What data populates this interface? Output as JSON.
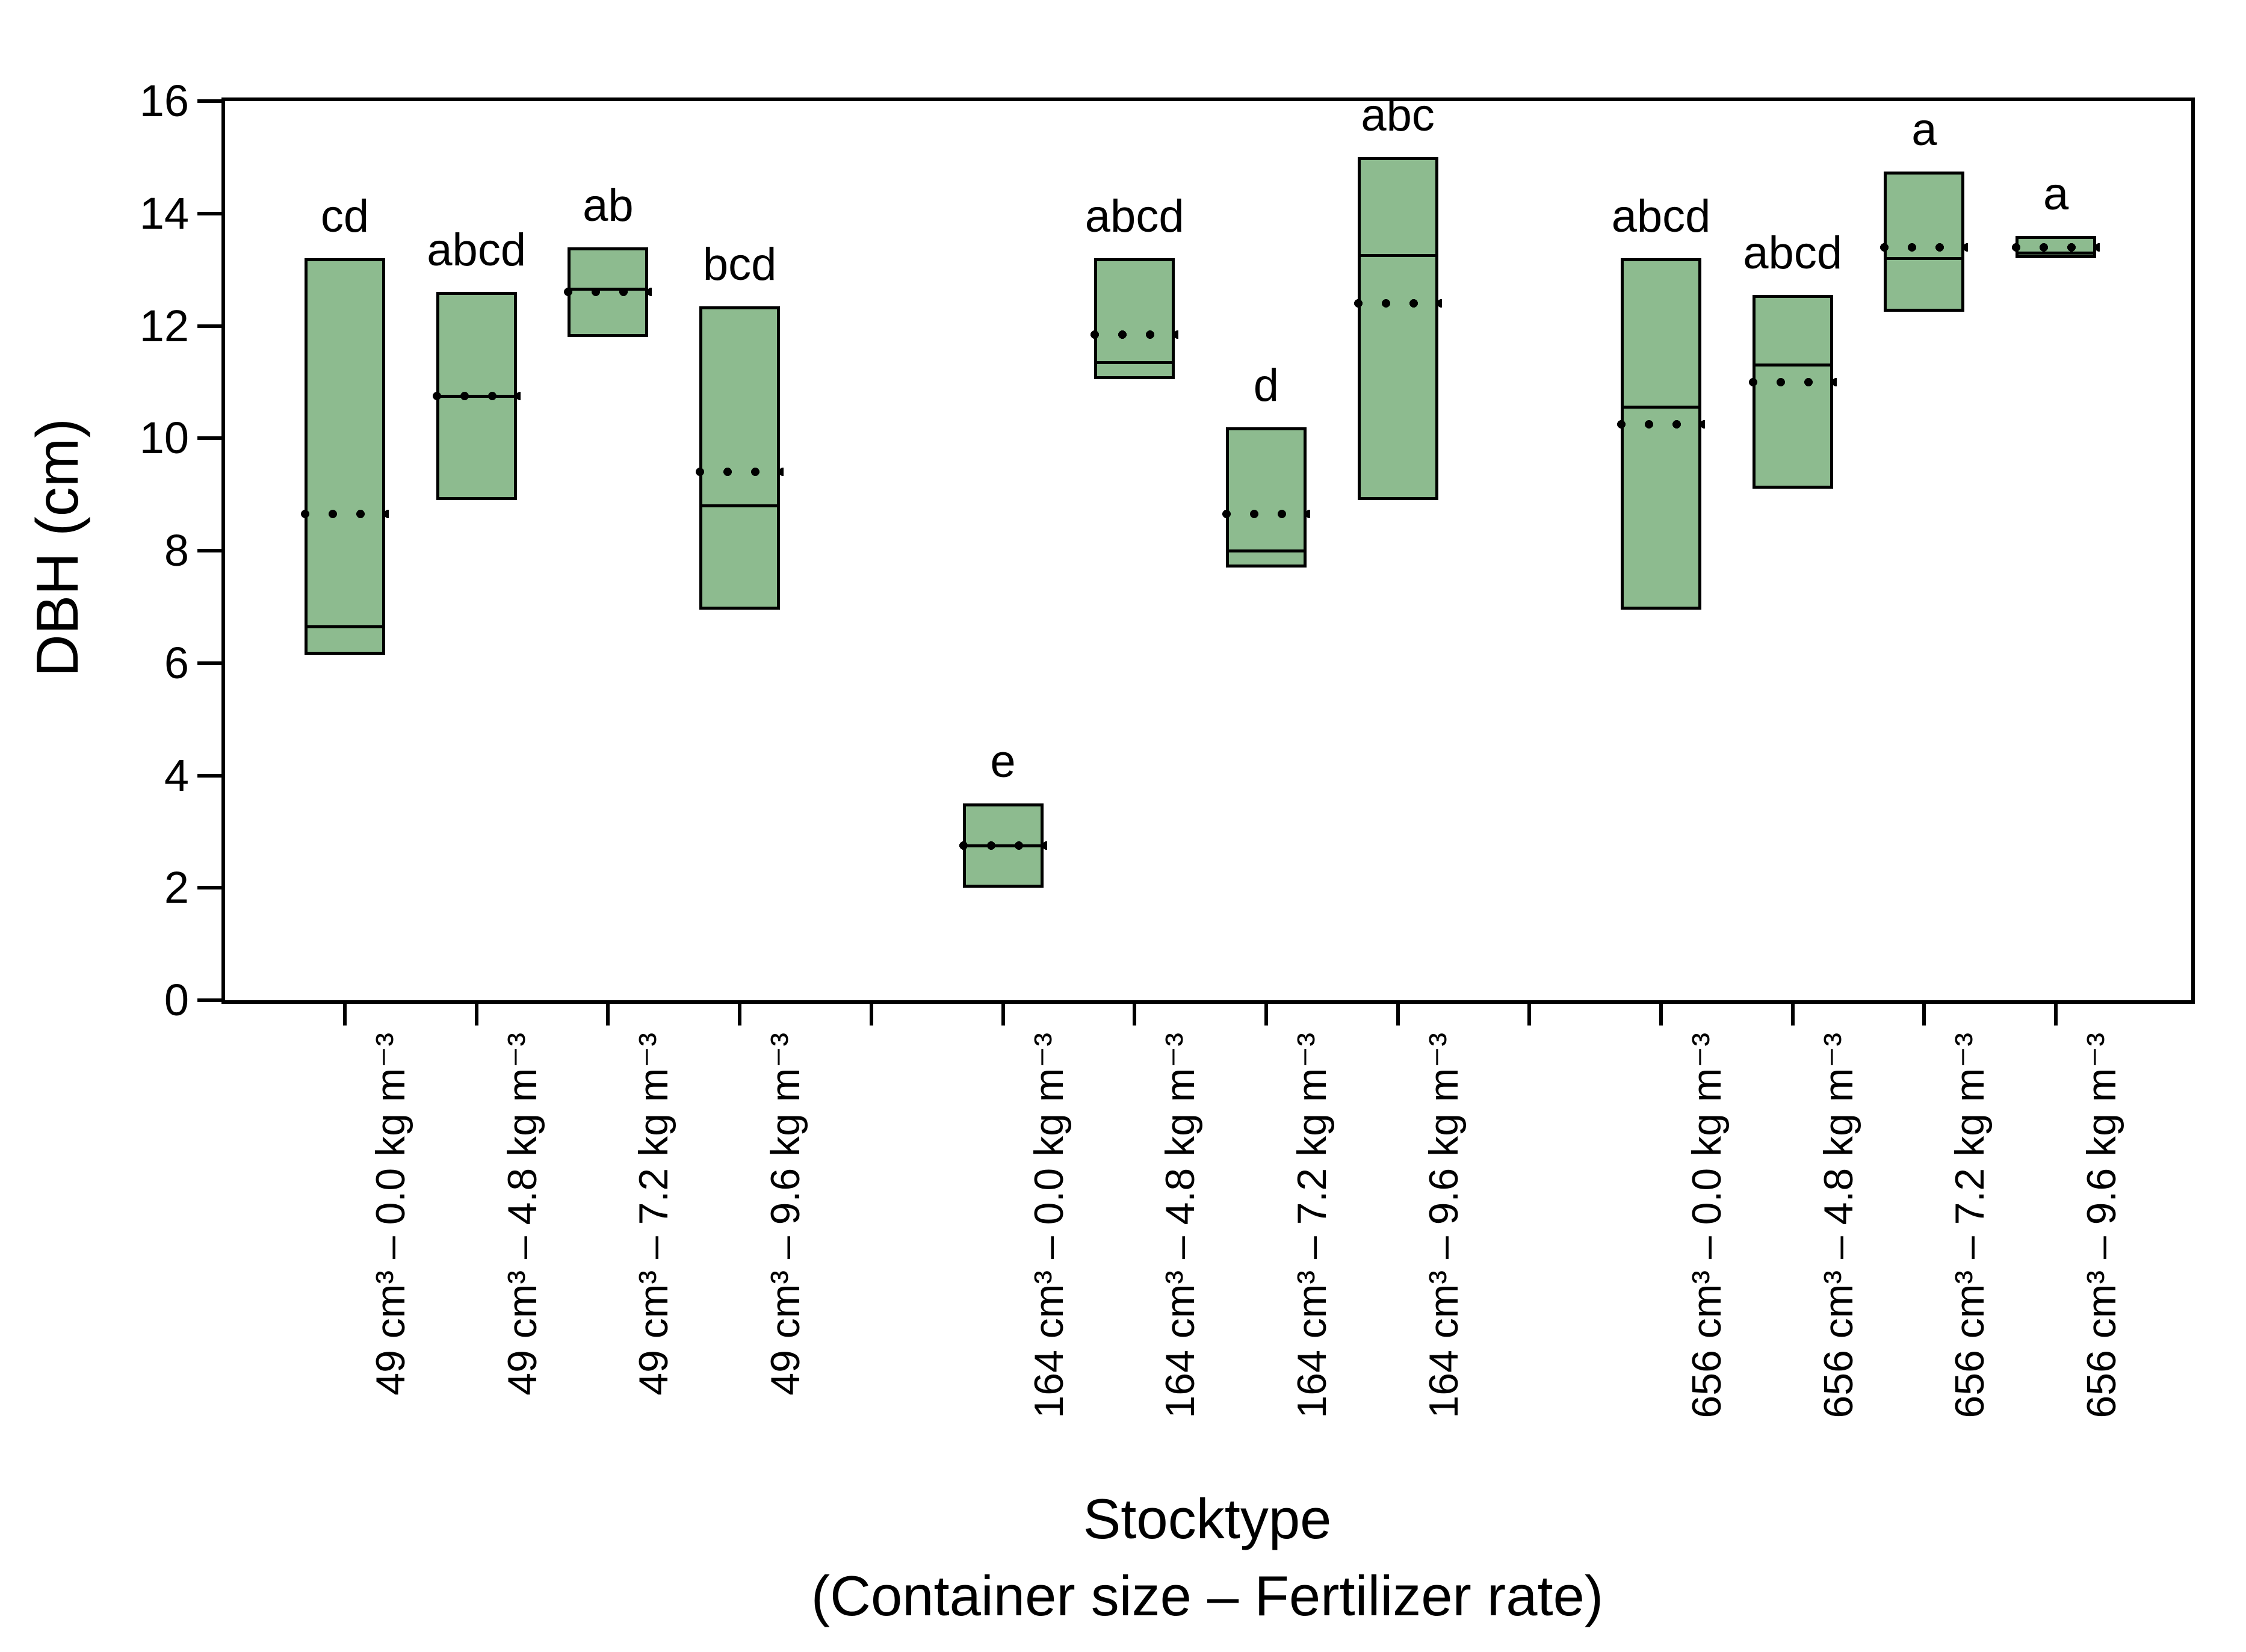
{
  "chart_data": {
    "type": "box",
    "title": "",
    "ylabel": "DBH (cm)",
    "xlabel": "Stocktype",
    "xlabel_sub": "(Container size – Fertilizer rate)",
    "ylim": [
      0,
      16
    ],
    "yticks": [
      0,
      2,
      4,
      6,
      8,
      10,
      12,
      14,
      16
    ],
    "n_slots": 14,
    "gap_slots": [
      4,
      9
    ],
    "box_fill": "#8dbb8f",
    "box_border": "#000000",
    "line_meaning": {
      "solid_line": "median",
      "dotted_line": "mean"
    },
    "boxes": [
      {
        "slot": 0,
        "category": "49 cm³ – 0.0 kg m⁻³",
        "letter": "cd",
        "low": 6.15,
        "high": 13.2,
        "median": 6.65,
        "mean": 8.65
      },
      {
        "slot": 1,
        "category": "49 cm³ – 4.8 kg m⁻³",
        "letter": "abcd",
        "low": 8.9,
        "high": 12.6,
        "median": 10.75,
        "mean": 10.75
      },
      {
        "slot": 2,
        "category": "49 cm³ – 7.2 kg m⁻³",
        "letter": "ab",
        "low": 11.8,
        "high": 13.4,
        "median": 12.65,
        "mean": 12.6
      },
      {
        "slot": 3,
        "category": "49 cm³ – 9.6 kg m⁻³",
        "letter": "bcd",
        "low": 6.95,
        "high": 12.35,
        "median": 8.8,
        "mean": 9.4
      },
      {
        "slot": 5,
        "category": "164 cm³ – 0.0 kg m⁻³",
        "letter": "e",
        "low": 2.0,
        "high": 3.5,
        "median": 2.75,
        "mean": 2.75
      },
      {
        "slot": 6,
        "category": "164 cm³ – 4.8 kg m⁻³",
        "letter": "abcd",
        "low": 11.05,
        "high": 13.2,
        "median": 11.35,
        "mean": 11.85
      },
      {
        "slot": 7,
        "category": "164 cm³ – 7.2 kg m⁻³",
        "letter": "d",
        "low": 7.7,
        "high": 10.2,
        "median": 8.0,
        "mean": 8.65
      },
      {
        "slot": 8,
        "category": "164 cm³ – 9.6 kg m⁻³",
        "letter": "abc",
        "low": 8.9,
        "high": 15.0,
        "median": 13.25,
        "mean": 12.4
      },
      {
        "slot": 10,
        "category": "656 cm³ – 0.0 kg m⁻³",
        "letter": "abcd",
        "low": 6.95,
        "high": 13.2,
        "median": 10.55,
        "mean": 10.25
      },
      {
        "slot": 11,
        "category": "656 cm³ – 4.8 kg m⁻³",
        "letter": "abcd",
        "low": 9.1,
        "high": 12.55,
        "median": 11.3,
        "mean": 11.0
      },
      {
        "slot": 12,
        "category": "656 cm³ – 7.2 kg m⁻³",
        "letter": "a",
        "low": 12.25,
        "high": 14.75,
        "median": 13.2,
        "mean": 13.4
      },
      {
        "slot": 13,
        "category": "656 cm³ – 9.6 kg m⁻³",
        "letter": "a",
        "low": 13.2,
        "high": 13.6,
        "median": 13.3,
        "mean": 13.4
      }
    ]
  }
}
